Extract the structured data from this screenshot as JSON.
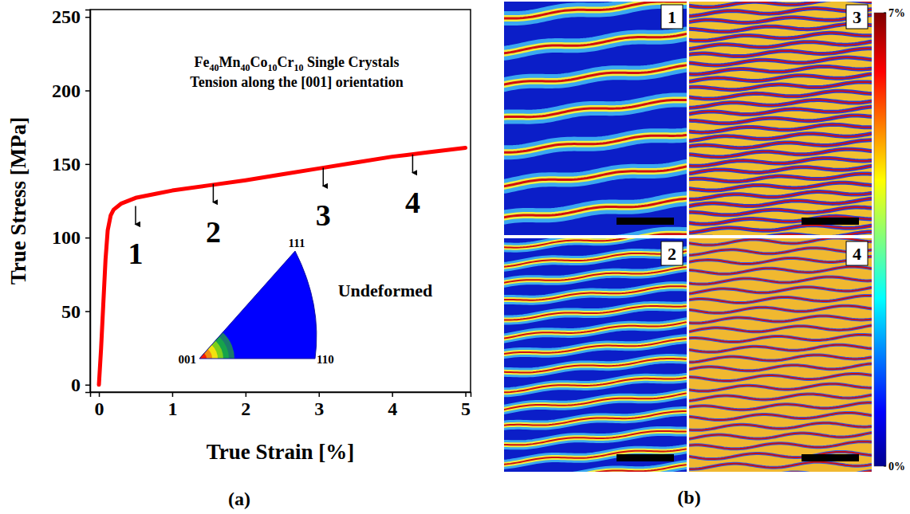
{
  "chart_data": [
    {
      "type": "line",
      "panel_label": "(a)",
      "title": "Fe40Mn40Co10Cr10 Single Crystals",
      "subtitle": "Tension along the [001] orientation",
      "x_label": "True Strain [%]",
      "y_label": "True Stress [MPa]",
      "x": [
        0,
        0.03,
        0.06,
        0.09,
        0.12,
        0.16,
        0.2,
        0.3,
        0.5,
        0.8,
        1,
        1.5,
        2,
        2.5,
        3,
        3.5,
        4,
        4.5,
        5
      ],
      "series": [
        {
          "values": [
            0,
            25,
            55,
            85,
            105,
            115,
            119,
            123,
            127,
            130,
            132,
            135.5,
            139,
            143,
            147,
            151,
            155,
            158,
            161
          ],
          "color": "#ff0000"
        }
      ],
      "xlim": [
        -0.12,
        5.07
      ],
      "xticks": [
        0,
        1,
        2,
        3,
        4,
        5
      ],
      "ylim": [
        -5,
        255
      ],
      "yticks": [
        0,
        50,
        100,
        150,
        200,
        250
      ],
      "annotations": [
        {
          "text": "1",
          "x": 0.5,
          "y": 82
        },
        {
          "text": "2",
          "x": 1.56,
          "y": 97
        },
        {
          "text": "3",
          "x": 3.06,
          "y": 108
        },
        {
          "text": "4",
          "x": 4.28,
          "y": 117
        }
      ],
      "inset": {
        "title": "Undeformed",
        "labels": [
          "001",
          "110",
          "111"
        ]
      }
    },
    {
      "type": "heatmap",
      "panel_label": "(b)",
      "panels": [
        "1",
        "2",
        "3",
        "4"
      ],
      "colorbar": {
        "range": [
          0,
          7
        ],
        "ticks": [
          {
            "value": 0,
            "label": "0%"
          },
          {
            "value": 7,
            "label": "7%"
          }
        ]
      }
    }
  ]
}
